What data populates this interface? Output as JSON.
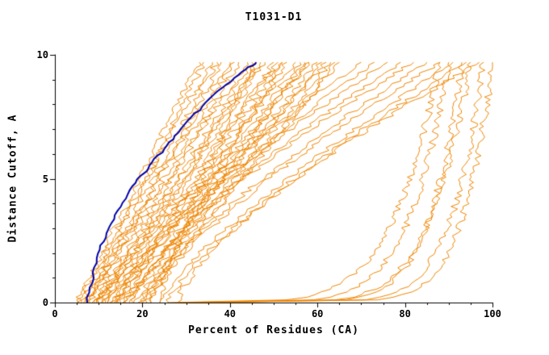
{
  "page": {
    "background": "#ffffff"
  },
  "chart_data": {
    "type": "line",
    "title": "T1031-D1",
    "xlabel": "Percent of Residues (CA)",
    "ylabel": "Distance Cutoff, A",
    "xlim": [
      0,
      100
    ],
    "ylim": [
      0,
      10
    ],
    "x_major_ticks": [
      0,
      20,
      40,
      60,
      80,
      100
    ],
    "x_minor_step": 5,
    "y_major_ticks": [
      0,
      5,
      10
    ],
    "y_minor_step": 1,
    "grid": false,
    "legend": "none",
    "y_top_of_curves": 9.7,
    "colors": {
      "models": "#ee8500",
      "highlight": "#0000a8",
      "axis": "#000000",
      "text": "#000000"
    },
    "highlight_series": {
      "name": "selected-model",
      "color": "#0000a8",
      "points": [
        [
          7.4,
          0
        ],
        [
          8,
          0.6
        ],
        [
          8.8,
          1.2
        ],
        [
          9.6,
          1.8
        ],
        [
          10.6,
          2.3
        ],
        [
          11.8,
          2.8
        ],
        [
          13,
          3.2
        ],
        [
          14.4,
          3.7
        ],
        [
          16,
          4.2
        ],
        [
          17.8,
          4.7
        ],
        [
          19.6,
          5.1
        ],
        [
          21.4,
          5.4
        ],
        [
          23,
          5.8
        ],
        [
          25,
          6.2
        ],
        [
          27,
          6.6
        ],
        [
          29,
          7.0
        ],
        [
          31.4,
          7.5
        ],
        [
          33.8,
          7.9
        ],
        [
          36.4,
          8.4
        ],
        [
          39,
          8.8
        ],
        [
          41.8,
          9.2
        ],
        [
          44.4,
          9.5
        ],
        [
          46,
          9.7
        ]
      ]
    },
    "model_series": {
      "name": "predicted-models",
      "color": "#ee8500",
      "count": 46,
      "curve_format": [
        "x_at_y0",
        "x_at_ymax",
        "shape_exponent"
      ],
      "curves": [
        [
          5,
          33,
          1.0
        ],
        [
          6,
          34,
          0.95
        ],
        [
          5.5,
          36,
          1.05
        ],
        [
          7,
          37,
          1.0
        ],
        [
          6.5,
          38,
          0.9
        ],
        [
          8,
          40,
          1.1
        ],
        [
          7.5,
          41,
          1.0
        ],
        [
          9,
          42,
          0.95
        ],
        [
          8.5,
          44,
          1.05
        ],
        [
          10,
          45,
          1.0
        ],
        [
          9.5,
          46,
          0.9
        ],
        [
          11,
          47,
          1.1
        ],
        [
          10.5,
          48,
          1.0
        ],
        [
          12,
          50,
          0.95
        ],
        [
          11.5,
          51,
          1.05
        ],
        [
          13,
          52,
          1.0
        ],
        [
          12.5,
          53,
          0.9
        ],
        [
          14,
          55,
          1.1
        ],
        [
          13.5,
          56,
          1.0
        ],
        [
          15,
          57,
          0.95
        ],
        [
          14.5,
          58,
          1.05
        ],
        [
          16,
          60,
          1.0
        ],
        [
          15.5,
          61,
          0.9
        ],
        [
          17,
          62,
          1.1
        ],
        [
          18,
          63,
          1.0
        ],
        [
          19,
          64,
          0.95
        ],
        [
          20,
          65,
          1.05
        ],
        [
          21,
          58,
          1.15
        ],
        [
          22,
          52,
          1.1
        ],
        [
          24,
          46,
          1.2
        ],
        [
          10,
          70,
          1.3
        ],
        [
          12,
          73,
          1.25
        ],
        [
          14,
          76,
          1.35
        ],
        [
          16,
          79,
          1.3
        ],
        [
          18,
          82,
          1.4
        ],
        [
          20,
          85,
          1.3
        ],
        [
          22,
          88,
          1.35
        ],
        [
          24,
          91,
          1.25
        ],
        [
          26,
          94,
          1.3
        ],
        [
          28,
          97,
          1.4
        ],
        [
          26,
          88,
          0.18
        ],
        [
          28,
          90,
          0.15
        ],
        [
          30,
          93,
          0.12
        ],
        [
          32,
          95,
          0.15
        ],
        [
          34,
          98,
          0.12
        ],
        [
          30,
          100,
          0.1
        ]
      ]
    }
  }
}
